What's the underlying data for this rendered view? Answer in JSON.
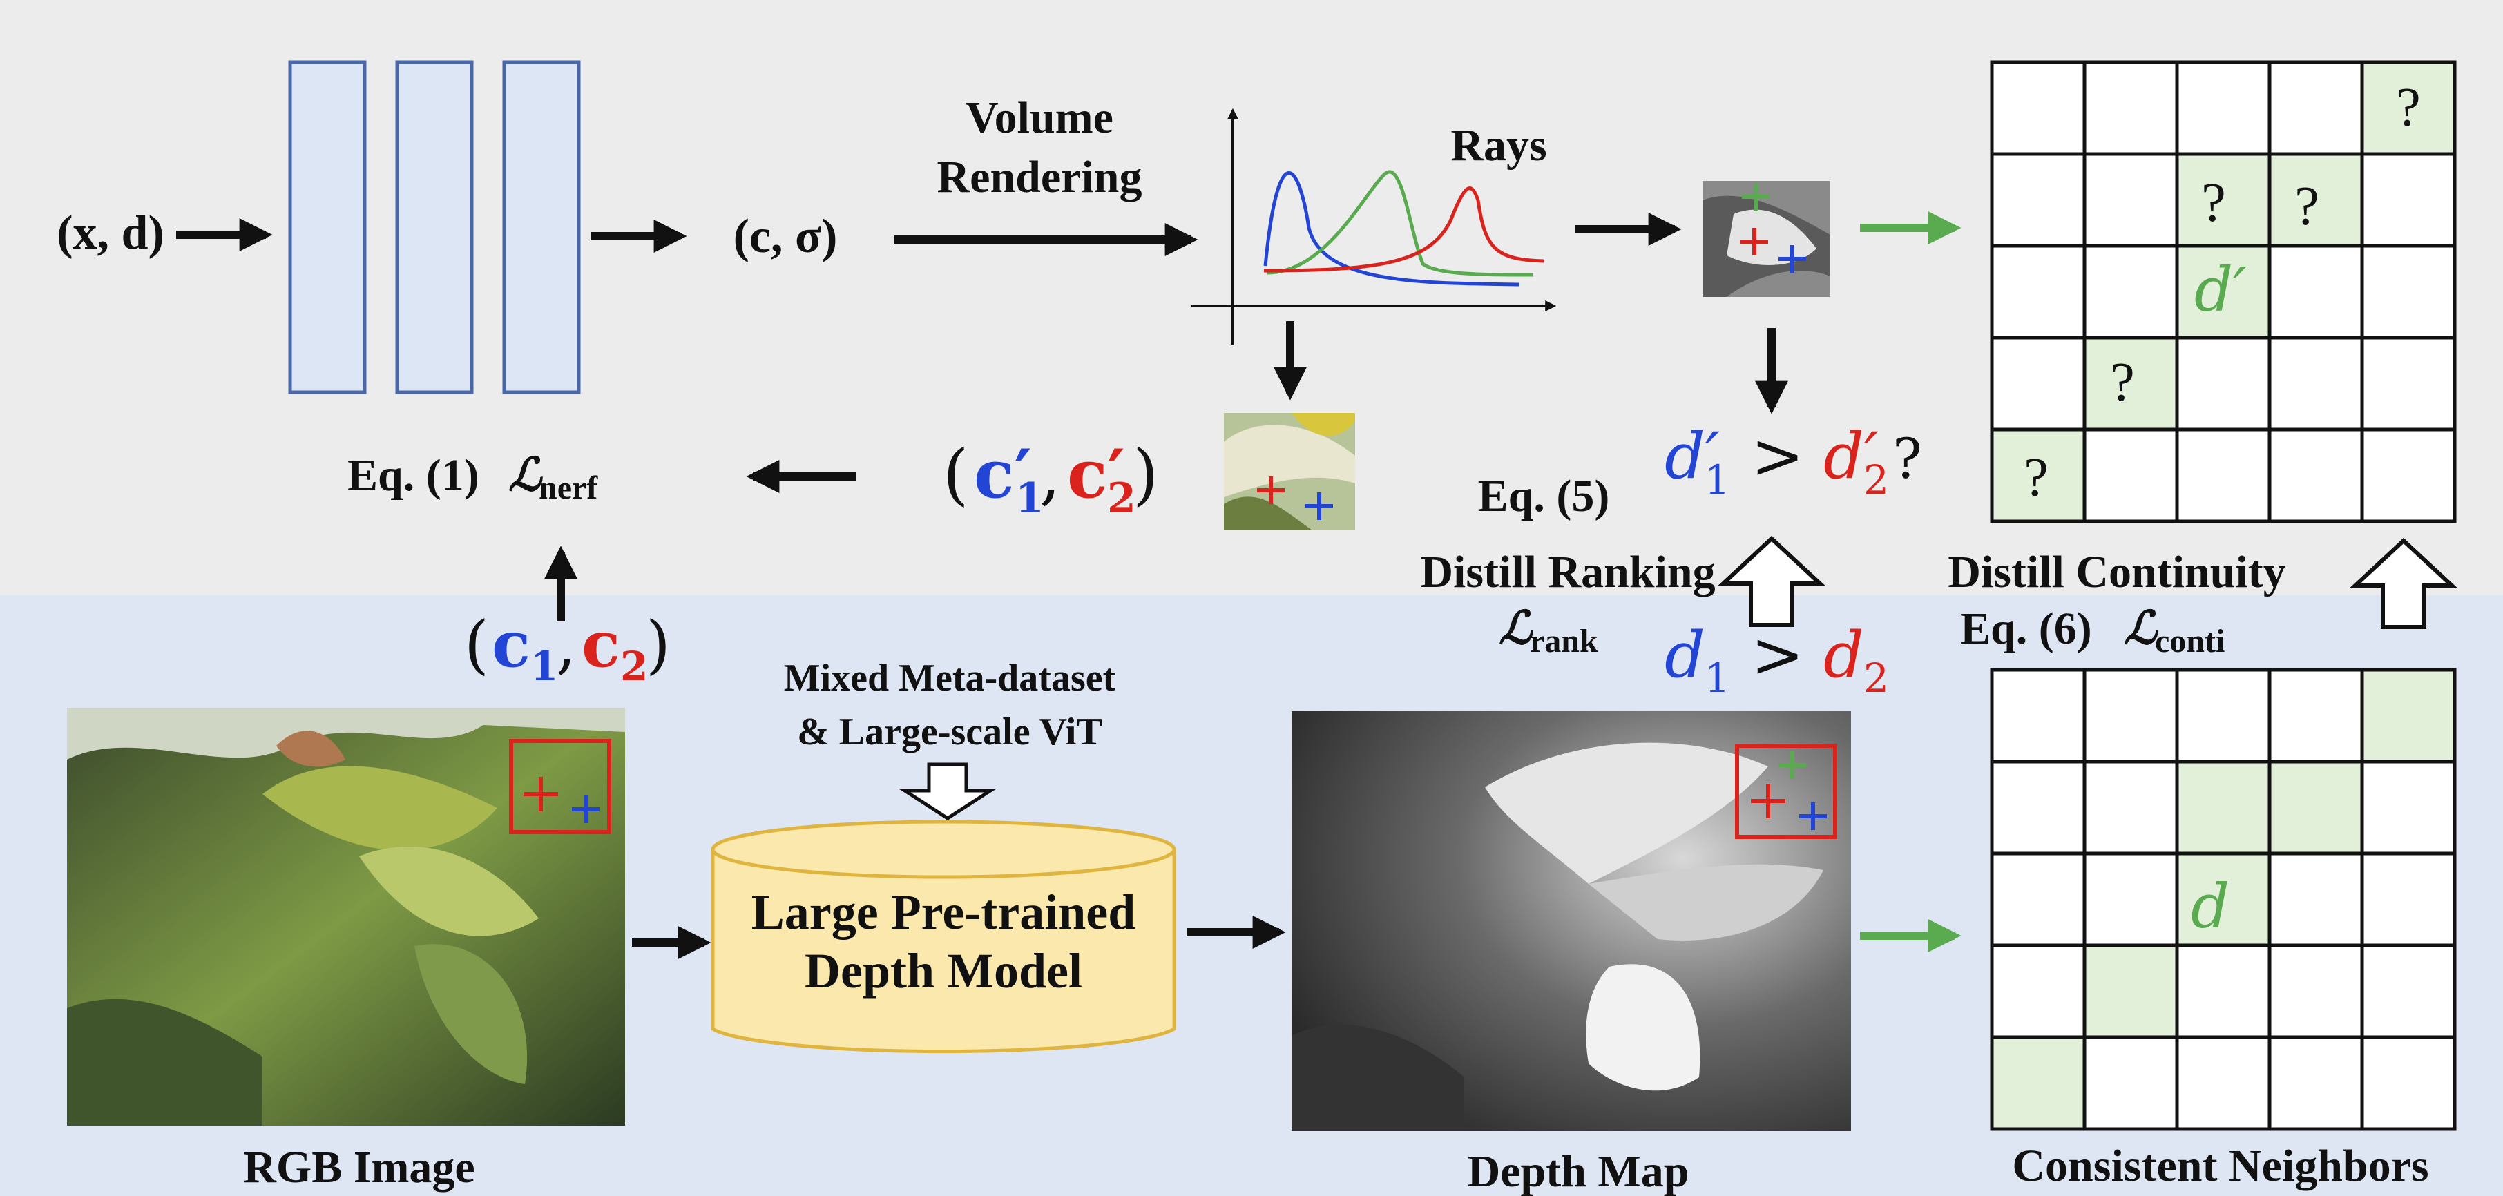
{
  "colors": {
    "top_bg": "#ececec",
    "bottom_bg": "#dfe6f3",
    "mlp_block": "#dde6f4",
    "mlp_border": "#4a68a8",
    "db_fill": "#fbe8ad",
    "db_border": "#e0b53f",
    "cell_fill": "#e2efd9",
    "red": "#d9231c",
    "blue": "#2345d6",
    "green": "#5aab50",
    "arrow": "#111111"
  },
  "top": {
    "input": "(x, d)",
    "output": "(c, σ)",
    "volume_rendering": [
      "Volume",
      "Rendering"
    ],
    "rays_label": "Rays",
    "eq1": {
      "prefix": "Eq. (1)",
      "loss": "ℒ",
      "sub": "nerf"
    },
    "rendered_colors": {
      "c1": "c′",
      "s1": "1",
      "c2": "c′",
      "s2": "2"
    },
    "eq5": "Eq. (5)",
    "rank_pred": {
      "d1": "d′",
      "s1": "1",
      "op": ">",
      "d2": "d′",
      "s2": "2",
      "q": "?"
    },
    "distill_ranking": "Distill Ranking",
    "rank_loss": {
      "loss": "ℒ",
      "sub": "rank"
    },
    "distill_continuity": "Distill Continuity",
    "eq6": {
      "prefix": "Eq. (6)",
      "loss": "ℒ",
      "sub": "conti"
    },
    "grid_question": "?",
    "grid_center": "d′"
  },
  "bottom": {
    "pixel_colors": {
      "c1": "c",
      "s1": "1",
      "c2": "c",
      "s2": "2"
    },
    "meta_dataset": [
      "Mixed Meta-dataset",
      "& Large-scale ViT"
    ],
    "model_label": [
      "Large Pre-trained",
      "Depth Model"
    ],
    "rgb_caption": "RGB Image",
    "depth_caption": "Depth Map",
    "rank_gt": {
      "d1": "d",
      "s1": "1",
      "op": ">",
      "d2": "d",
      "s2": "2"
    },
    "grid_center": "d",
    "neighbors_caption": "Consistent Neighbors"
  }
}
